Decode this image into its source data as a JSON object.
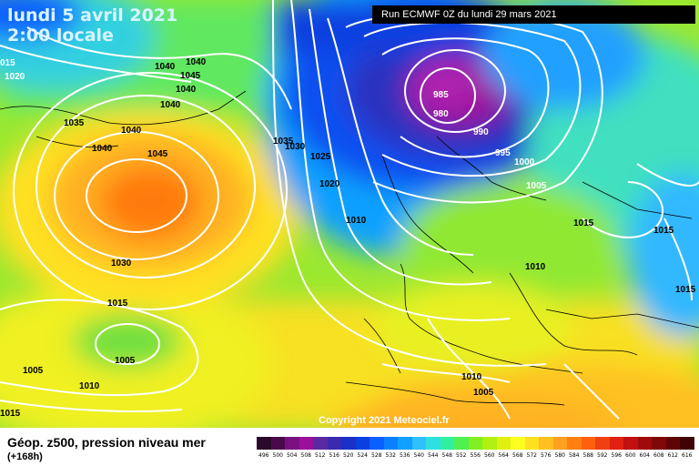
{
  "title": {
    "date_line": "lundi 5 avril 2021",
    "time_line": "2:00 locale"
  },
  "run_info": "Run ECMWF 0Z du lundi 29 mars 2021",
  "copyright": "Copyright 2021 Meteociel.fr",
  "caption": {
    "main": "Géop. z500, pression niveau mer",
    "sub": "(+168h)"
  },
  "legend": {
    "values": [
      "496",
      "500",
      "504",
      "508",
      "512",
      "516",
      "520",
      "524",
      "528",
      "532",
      "536",
      "540",
      "544",
      "548",
      "552",
      "556",
      "560",
      "564",
      "568",
      "572",
      "576",
      "580",
      "584",
      "588",
      "592",
      "596",
      "600",
      "604",
      "608",
      "612",
      "616"
    ],
    "colors": [
      "#2a0a2a",
      "#4a0a4a",
      "#7a1080",
      "#9a109a",
      "#5a2aa0",
      "#3a2ab0",
      "#1a30c8",
      "#0a40e0",
      "#0a60ff",
      "#0a80ff",
      "#10a0ff",
      "#30c0ff",
      "#30e0e0",
      "#30f0a0",
      "#50f050",
      "#80f020",
      "#b0f010",
      "#e0f010",
      "#ffff20",
      "#ffe020",
      "#ffc020",
      "#ffa020",
      "#ff8010",
      "#ff6010",
      "#f04010",
      "#e02010",
      "#c01010",
      "#a00a0a",
      "#800808",
      "#600505",
      "#400303"
    ]
  },
  "isobar_labels": [
    {
      "text": "1040"
    },
    {
      "text": "1040"
    },
    {
      "text": "1045"
    },
    {
      "text": "1040"
    },
    {
      "text": "1040"
    },
    {
      "text": "1020"
    },
    {
      "text": "015"
    },
    {
      "text": "1035"
    },
    {
      "text": "1040"
    },
    {
      "text": "1040"
    },
    {
      "text": "1045"
    },
    {
      "text": "1035"
    },
    {
      "text": "1030"
    },
    {
      "text": "1025"
    },
    {
      "text": "1020"
    },
    {
      "text": "1010"
    },
    {
      "text": "985"
    },
    {
      "text": "980"
    },
    {
      "text": "990"
    },
    {
      "text": "995"
    },
    {
      "text": "1000"
    },
    {
      "text": "1005"
    },
    {
      "text": "1015"
    },
    {
      "text": "1015"
    },
    {
      "text": "1015"
    },
    {
      "text": "1010"
    },
    {
      "text": "1030"
    },
    {
      "text": "1015"
    },
    {
      "text": "1005"
    },
    {
      "text": "1005"
    },
    {
      "text": "1010"
    },
    {
      "text": "1010"
    },
    {
      "text": "1005"
    },
    {
      "text": "1015"
    }
  ]
}
